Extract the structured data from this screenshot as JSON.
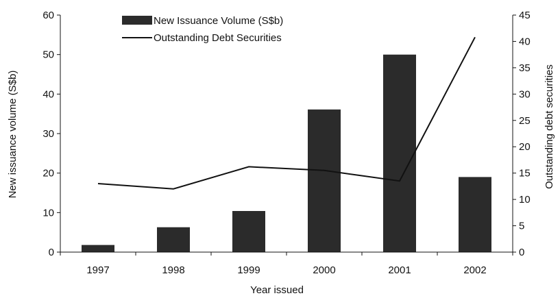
{
  "chart_data": {
    "type": "bar",
    "categories": [
      "1997",
      "1998",
      "1999",
      "2000",
      "2001",
      "2002"
    ],
    "series": [
      {
        "name": "New Issuance Volume (S$b)",
        "type": "bar",
        "axis": "left",
        "values": [
          1.8,
          6.3,
          10.4,
          36.1,
          50.0,
          19.0
        ]
      },
      {
        "name": "Outstanding Debt Securities",
        "type": "line",
        "axis": "right",
        "values": [
          13.0,
          12.0,
          16.2,
          15.5,
          13.5,
          40.8
        ]
      }
    ],
    "xlabel": "Year issued",
    "ylabel": "New issuance volume (S$b)",
    "y2label": "Outstanding debt securities",
    "ylim": [
      0,
      60
    ],
    "y2lim": [
      0,
      45
    ],
    "yticks": [
      "0",
      "10",
      "20",
      "30",
      "40",
      "50",
      "60"
    ],
    "y2ticks": [
      "0",
      "5",
      "10",
      "15",
      "20",
      "25",
      "30",
      "35",
      "40",
      "45"
    ],
    "legend_position": "top-left",
    "grid": false,
    "colors": {
      "bar": "#2b2b2b",
      "line": "#111111",
      "axis": "#111111"
    }
  }
}
